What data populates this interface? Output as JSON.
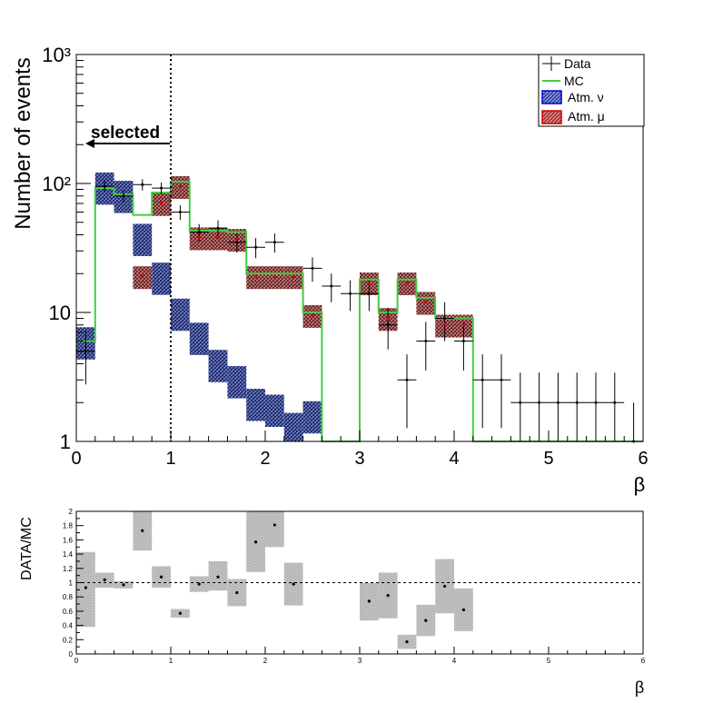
{
  "chart_data": [
    {
      "type": "histogram",
      "scale": "log",
      "xlabel": "β",
      "ylabel": "Number of events",
      "xlim": [
        0,
        6
      ],
      "ylim": [
        1,
        1000
      ],
      "x_ticks": [
        "0",
        "1",
        "2",
        "3",
        "4",
        "5",
        "6"
      ],
      "y_ticks": [
        "1",
        "10",
        "10²",
        "10³"
      ],
      "bin_width": 0.2,
      "bin_centers": [
        0.1,
        0.3,
        0.5,
        0.7,
        0.9,
        1.1,
        1.3,
        1.5,
        1.7,
        1.9,
        2.1,
        2.3,
        2.5,
        2.7,
        2.9,
        3.1,
        3.3,
        3.5,
        3.7,
        3.9,
        4.1,
        4.3,
        4.5,
        4.7,
        4.9,
        5.1,
        5.3,
        5.5,
        5.7,
        5.9
      ],
      "series": [
        {
          "name": "Data",
          "style": "points-with-errors",
          "color": "#000000",
          "values": [
            5,
            95,
            80,
            98,
            92,
            60,
            42,
            45,
            35,
            32,
            35,
            null,
            22,
            16,
            14,
            14,
            8,
            3,
            6,
            9,
            6,
            3,
            3,
            2,
            2,
            2,
            2,
            2,
            2,
            1
          ]
        },
        {
          "name": "MC",
          "style": "step-line",
          "color": "#44cc44",
          "values": [
            6,
            92,
            82,
            57,
            85,
            103,
            43,
            43,
            42,
            20,
            20,
            20,
            10,
            1,
            1,
            18,
            10,
            18,
            13,
            9,
            9,
            1,
            1,
            1,
            1,
            1,
            1,
            1,
            1,
            1
          ]
        },
        {
          "name": "Atm. ν",
          "style": "hatched-band",
          "color": "#2244cc",
          "values": [
            6,
            95,
            82,
            38,
            19,
            10,
            6.5,
            4,
            3,
            2,
            1.8,
            1.3,
            1.6,
            null,
            null,
            null,
            null,
            null,
            null,
            null,
            null,
            null,
            null,
            null,
            null,
            null,
            null,
            null,
            null,
            null
          ]
        },
        {
          "name": "Atm. μ",
          "style": "hatched-band",
          "color": "#cc2222",
          "values": [
            null,
            null,
            null,
            19,
            70,
            95,
            38,
            38,
            37,
            19,
            19,
            19,
            9.5,
            null,
            null,
            17,
            9,
            17,
            12,
            8,
            8,
            null,
            null,
            null,
            null,
            null,
            null,
            null,
            null,
            null
          ]
        }
      ],
      "annotations": [
        {
          "text": "selected",
          "x": 1.0,
          "arrow": "left"
        }
      ],
      "cut_line_x": 1.0,
      "legend": {
        "position": "top-right",
        "entries": [
          "Data",
          "MC",
          "Atm. ν",
          "Atm. μ"
        ]
      }
    },
    {
      "type": "ratio",
      "xlabel": "β",
      "ylabel": "DATA/MC",
      "xlim": [
        0,
        6
      ],
      "ylim": [
        0,
        2
      ],
      "reference_line": 1,
      "x_ticks": [
        "0",
        "1",
        "2",
        "3",
        "4",
        "5",
        "6"
      ],
      "y_ticks": [
        "0",
        "0.2",
        "0.4",
        "0.6",
        "0.8",
        "1",
        "1.2",
        "1.4",
        "1.6",
        "1.8",
        "2"
      ],
      "bin_centers": [
        0.1,
        0.3,
        0.5,
        0.7,
        0.9,
        1.1,
        1.3,
        1.5,
        1.7,
        1.9,
        2.1,
        2.3,
        3.1,
        3.3,
        3.5,
        3.7,
        3.9,
        4.1
      ],
      "values": [
        0.93,
        1.04,
        0.97,
        1.73,
        1.08,
        0.57,
        0.98,
        1.08,
        0.86,
        1.57,
        1.81,
        0.98,
        0.74,
        0.82,
        0.17,
        0.47,
        0.95,
        0.62
      ],
      "error_low": [
        0.38,
        0.93,
        0.92,
        1.45,
        0.93,
        0.51,
        0.87,
        0.89,
        0.67,
        1.15,
        1.5,
        0.68,
        0.47,
        0.5,
        0.07,
        0.25,
        0.57,
        0.32
      ],
      "error_high": [
        1.43,
        1.14,
        1.02,
        2.0,
        1.23,
        0.63,
        1.09,
        1.3,
        1.05,
        2.0,
        2.0,
        1.28,
        1.0,
        1.14,
        0.27,
        0.69,
        1.33,
        0.92
      ]
    }
  ]
}
